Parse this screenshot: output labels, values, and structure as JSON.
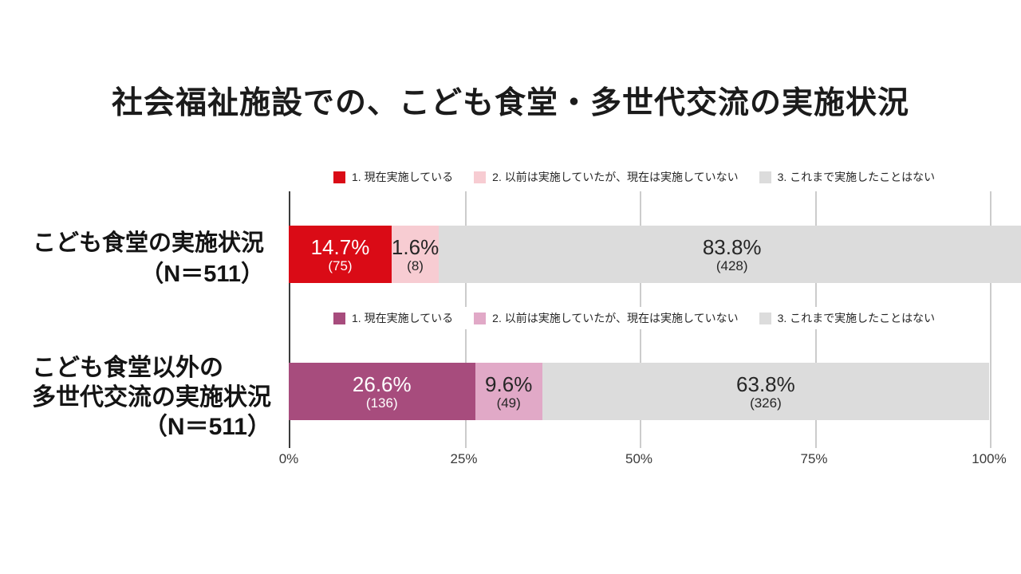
{
  "page": {
    "background": "#ffffff"
  },
  "chart_data": {
    "type": "bar",
    "orientation": "horizontal_stacked",
    "title": "社会福祉施設での、こども食堂・多世代交流の実施状況",
    "xlim": [
      0,
      100
    ],
    "x_tick_values": [
      0,
      25,
      50,
      75,
      100
    ],
    "x_tick_labels": [
      "0%",
      "25%",
      "50%",
      "75%",
      "100%"
    ],
    "grid": "vertical",
    "axis_color": "#3c3c3c",
    "grid_color": "#cccccc",
    "rows": [
      {
        "label_lines": [
          "こども食堂の実施状況",
          "（N＝511）"
        ],
        "n": 511,
        "legend": [
          {
            "label": "1. 現在実施している",
            "color": "#da0b16"
          },
          {
            "label": "2. 以前は実施していたが、現在は実施していない",
            "color": "#f7ccd2"
          },
          {
            "label": "3. これまで実施したことはない",
            "color": "#dcdcdc"
          }
        ],
        "segments": [
          {
            "name": "1. 現在実施している",
            "pct": 14.7,
            "count": 75,
            "pct_label": "14.7%",
            "count_label": "(75)",
            "color": "#da0b16",
            "text_color": "#ffffff"
          },
          {
            "name": "2. 以前は実施していたが、現在は実施していない",
            "pct": 1.6,
            "count": 8,
            "pct_label": "1.6%",
            "count_label": "(8)",
            "color": "#f7ccd2",
            "text_color": "#262626"
          },
          {
            "name": "3. これまで実施したことはない",
            "pct": 83.8,
            "count": 428,
            "pct_label": "83.8%",
            "count_label": "(428)",
            "color": "#dcdcdc",
            "text_color": "#262626"
          }
        ]
      },
      {
        "label_lines": [
          "こども食堂以外の",
          "多世代交流の実施状況",
          "（N＝511）"
        ],
        "n": 511,
        "legend": [
          {
            "label": "1. 現在実施している",
            "color": "#a74c7d"
          },
          {
            "label": "2. 以前は実施していたが、現在は実施していない",
            "color": "#e1a9c7"
          },
          {
            "label": "3. これまで実施したことはない",
            "color": "#dcdcdc"
          }
        ],
        "segments": [
          {
            "name": "1. 現在実施している",
            "pct": 26.6,
            "count": 136,
            "pct_label": "26.6%",
            "count_label": "(136)",
            "color": "#a74c7d",
            "text_color": "#ffffff"
          },
          {
            "name": "2. 以前は実施していたが、現在は実施していない",
            "pct": 9.6,
            "count": 49,
            "pct_label": "9.6%",
            "count_label": "(49)",
            "color": "#e1a9c7",
            "text_color": "#262626"
          },
          {
            "name": "3. これまで実施したことはない",
            "pct": 63.8,
            "count": 326,
            "pct_label": "63.8%",
            "count_label": "(326)",
            "color": "#dcdcdc",
            "text_color": "#262626"
          }
        ]
      }
    ]
  }
}
